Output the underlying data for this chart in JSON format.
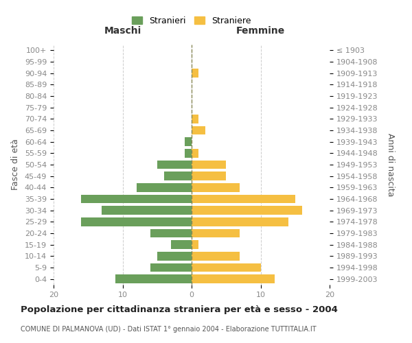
{
  "age_groups": [
    "0-4",
    "5-9",
    "10-14",
    "15-19",
    "20-24",
    "25-29",
    "30-34",
    "35-39",
    "40-44",
    "45-49",
    "50-54",
    "55-59",
    "60-64",
    "65-69",
    "70-74",
    "75-79",
    "80-84",
    "85-89",
    "90-94",
    "95-99",
    "100+"
  ],
  "birth_years": [
    "1999-2003",
    "1994-1998",
    "1989-1993",
    "1984-1988",
    "1979-1983",
    "1974-1978",
    "1969-1973",
    "1964-1968",
    "1959-1963",
    "1954-1958",
    "1949-1953",
    "1944-1948",
    "1939-1943",
    "1934-1938",
    "1929-1933",
    "1924-1928",
    "1919-1923",
    "1914-1918",
    "1909-1913",
    "1904-1908",
    "≤ 1903"
  ],
  "males": [
    11,
    6,
    5,
    3,
    6,
    16,
    13,
    16,
    8,
    4,
    5,
    1,
    1,
    0,
    0,
    0,
    0,
    0,
    0,
    0,
    0
  ],
  "females": [
    12,
    10,
    7,
    1,
    7,
    14,
    16,
    15,
    7,
    5,
    5,
    1,
    0,
    2,
    1,
    0,
    0,
    0,
    1,
    0,
    0
  ],
  "male_color": "#6a9f5b",
  "female_color": "#f5bf42",
  "grid_color": "#cccccc",
  "title": "Popolazione per cittadinanza straniera per età e sesso - 2004",
  "subtitle": "COMUNE DI PALMANOVA (UD) - Dati ISTAT 1° gennaio 2004 - Elaborazione TUTTITALIA.IT",
  "ylabel_left": "Fasce di età",
  "ylabel_right": "Anni di nascita",
  "xlabel_left": "Maschi",
  "xlabel_right": "Femmine",
  "legend_stranieri": "Stranieri",
  "legend_straniere": "Straniere",
  "xlim": 20
}
